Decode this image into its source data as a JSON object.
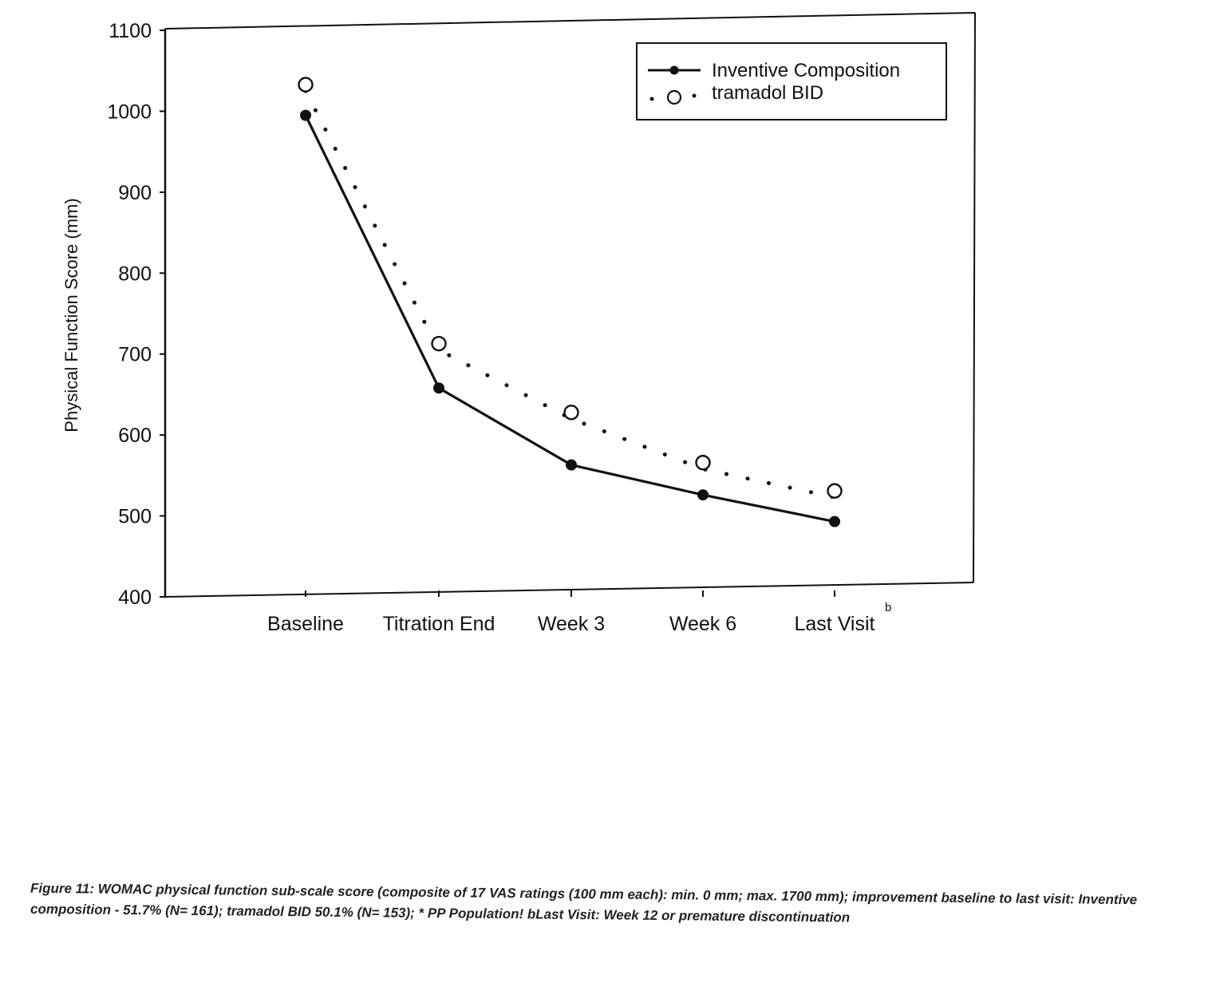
{
  "chart_data": {
    "type": "line",
    "categories": [
      "Baseline",
      "Titration End",
      "Week 3",
      "Week 6",
      "Last Visit"
    ],
    "last_category_superscript": "b",
    "ylabel": "Physical Function Score (mm)",
    "ylim": [
      400,
      1100
    ],
    "yticks": [
      400,
      500,
      600,
      700,
      800,
      900,
      1000,
      1100
    ],
    "legend_position": "top-right",
    "grid": false,
    "series": [
      {
        "name": "Inventive Composition",
        "style": "solid-line-filled-marker",
        "color": "#111111",
        "values": [
          995,
          658,
          563,
          526,
          493
        ]
      },
      {
        "name": "tramadol BID",
        "style": "dotted-line-open-marker",
        "color": "#111111",
        "values": [
          1025,
          705,
          620,
          558,
          523
        ]
      }
    ]
  },
  "caption": "Figure 11: WOMAC physical function sub-scale score (composite of 17 VAS ratings (100 mm each): min. 0 mm; max. 1700 mm); improvement baseline to last visit: Inventive composition - 51.7% (N= 161); tramadol BID 50.1% (N= 153); * PP Population! bLast Visit: Week 12 or premature discontinuation"
}
